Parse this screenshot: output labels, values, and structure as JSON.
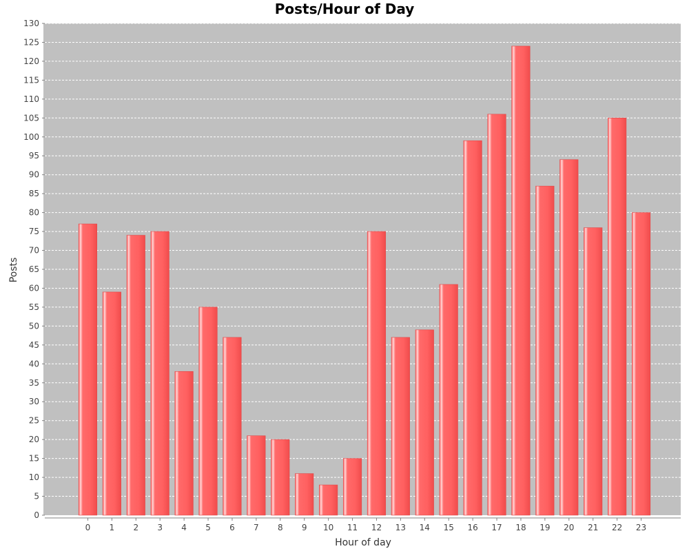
{
  "chart_data": {
    "type": "bar",
    "title": "Posts/Hour of Day",
    "xlabel": "Hour of day",
    "ylabel": "Posts",
    "categories": [
      "0",
      "1",
      "2",
      "3",
      "4",
      "5",
      "6",
      "7",
      "8",
      "9",
      "10",
      "11",
      "12",
      "13",
      "14",
      "15",
      "16",
      "17",
      "18",
      "19",
      "20",
      "21",
      "22",
      "23"
    ],
    "values": [
      77,
      59,
      74,
      75,
      38,
      55,
      47,
      21,
      20,
      11,
      8,
      15,
      75,
      47,
      49,
      61,
      99,
      106,
      124,
      87,
      94,
      76,
      105,
      80
    ],
    "ylim": [
      0,
      130
    ],
    "ytick_step": 5,
    "grid": true,
    "legend": "none"
  },
  "colors": {
    "plot_background": "#c0c0c0",
    "bar_fill": "#ff6464",
    "bar_highlight": "#ffd0d0",
    "bar_shadow": "#e04a4a",
    "grid": "#ffffff",
    "axis": "#808080"
  }
}
